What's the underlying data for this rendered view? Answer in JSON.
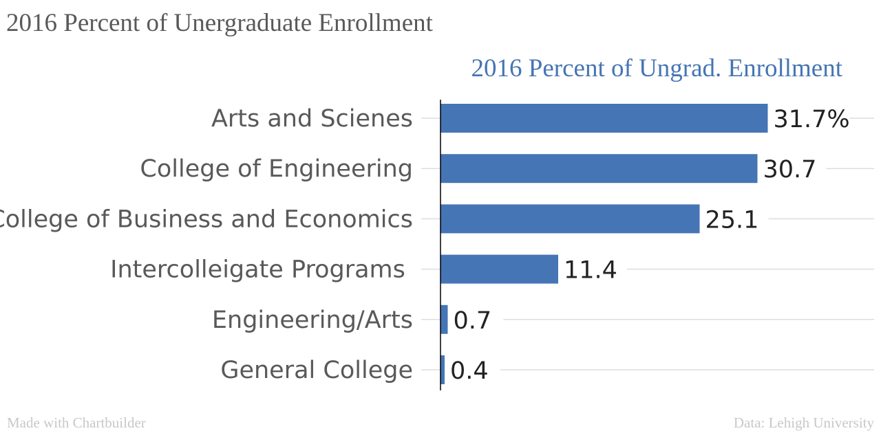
{
  "header": {
    "title": "2016 Percent of Unergraduate Enrollment"
  },
  "footer": {
    "credit": "Made with Chartbuilder",
    "source": "Data: Lehigh University"
  },
  "colors": {
    "bar": "#4575b4",
    "title": "#595959",
    "chart_title": "#4575b4",
    "grid": "#dddddd",
    "label": "#595959",
    "value": "#222222",
    "footer": "#c8c8c8"
  },
  "chart_data": {
    "type": "bar",
    "orientation": "horizontal",
    "title": "2016 Percent of Ungrad. Enrollment",
    "categories": [
      "Arts and Scienes",
      "College of Engineering",
      "College of Business and Economics",
      "Intercolleigate Programs ",
      "Engineering/Arts",
      "General College"
    ],
    "values": [
      31.7,
      30.7,
      25.1,
      11.4,
      0.7,
      0.4
    ],
    "value_labels": [
      "31.7%",
      "30.7",
      "25.1",
      "11.4",
      "0.7",
      "0.4"
    ],
    "xlim": [
      0,
      40
    ],
    "grid": true,
    "legend": "none"
  }
}
